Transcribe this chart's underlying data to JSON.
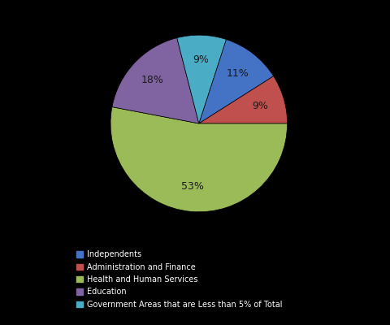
{
  "labels": [
    "Independents",
    "Administration and Finance",
    "Health and Human Services",
    "Education",
    "Government Areas that are Less than 5% of Total"
  ],
  "values": [
    11,
    9,
    53,
    18,
    9
  ],
  "colors": [
    "#4472C4",
    "#C0504D",
    "#9BBB59",
    "#8064A2",
    "#4BACC6"
  ],
  "background_color": "#000000",
  "text_color": "#1a1a1a",
  "legend_text_color": "#ffffff",
  "startangle": 72,
  "figsize": [
    4.8,
    4.0
  ],
  "dpi": 100
}
